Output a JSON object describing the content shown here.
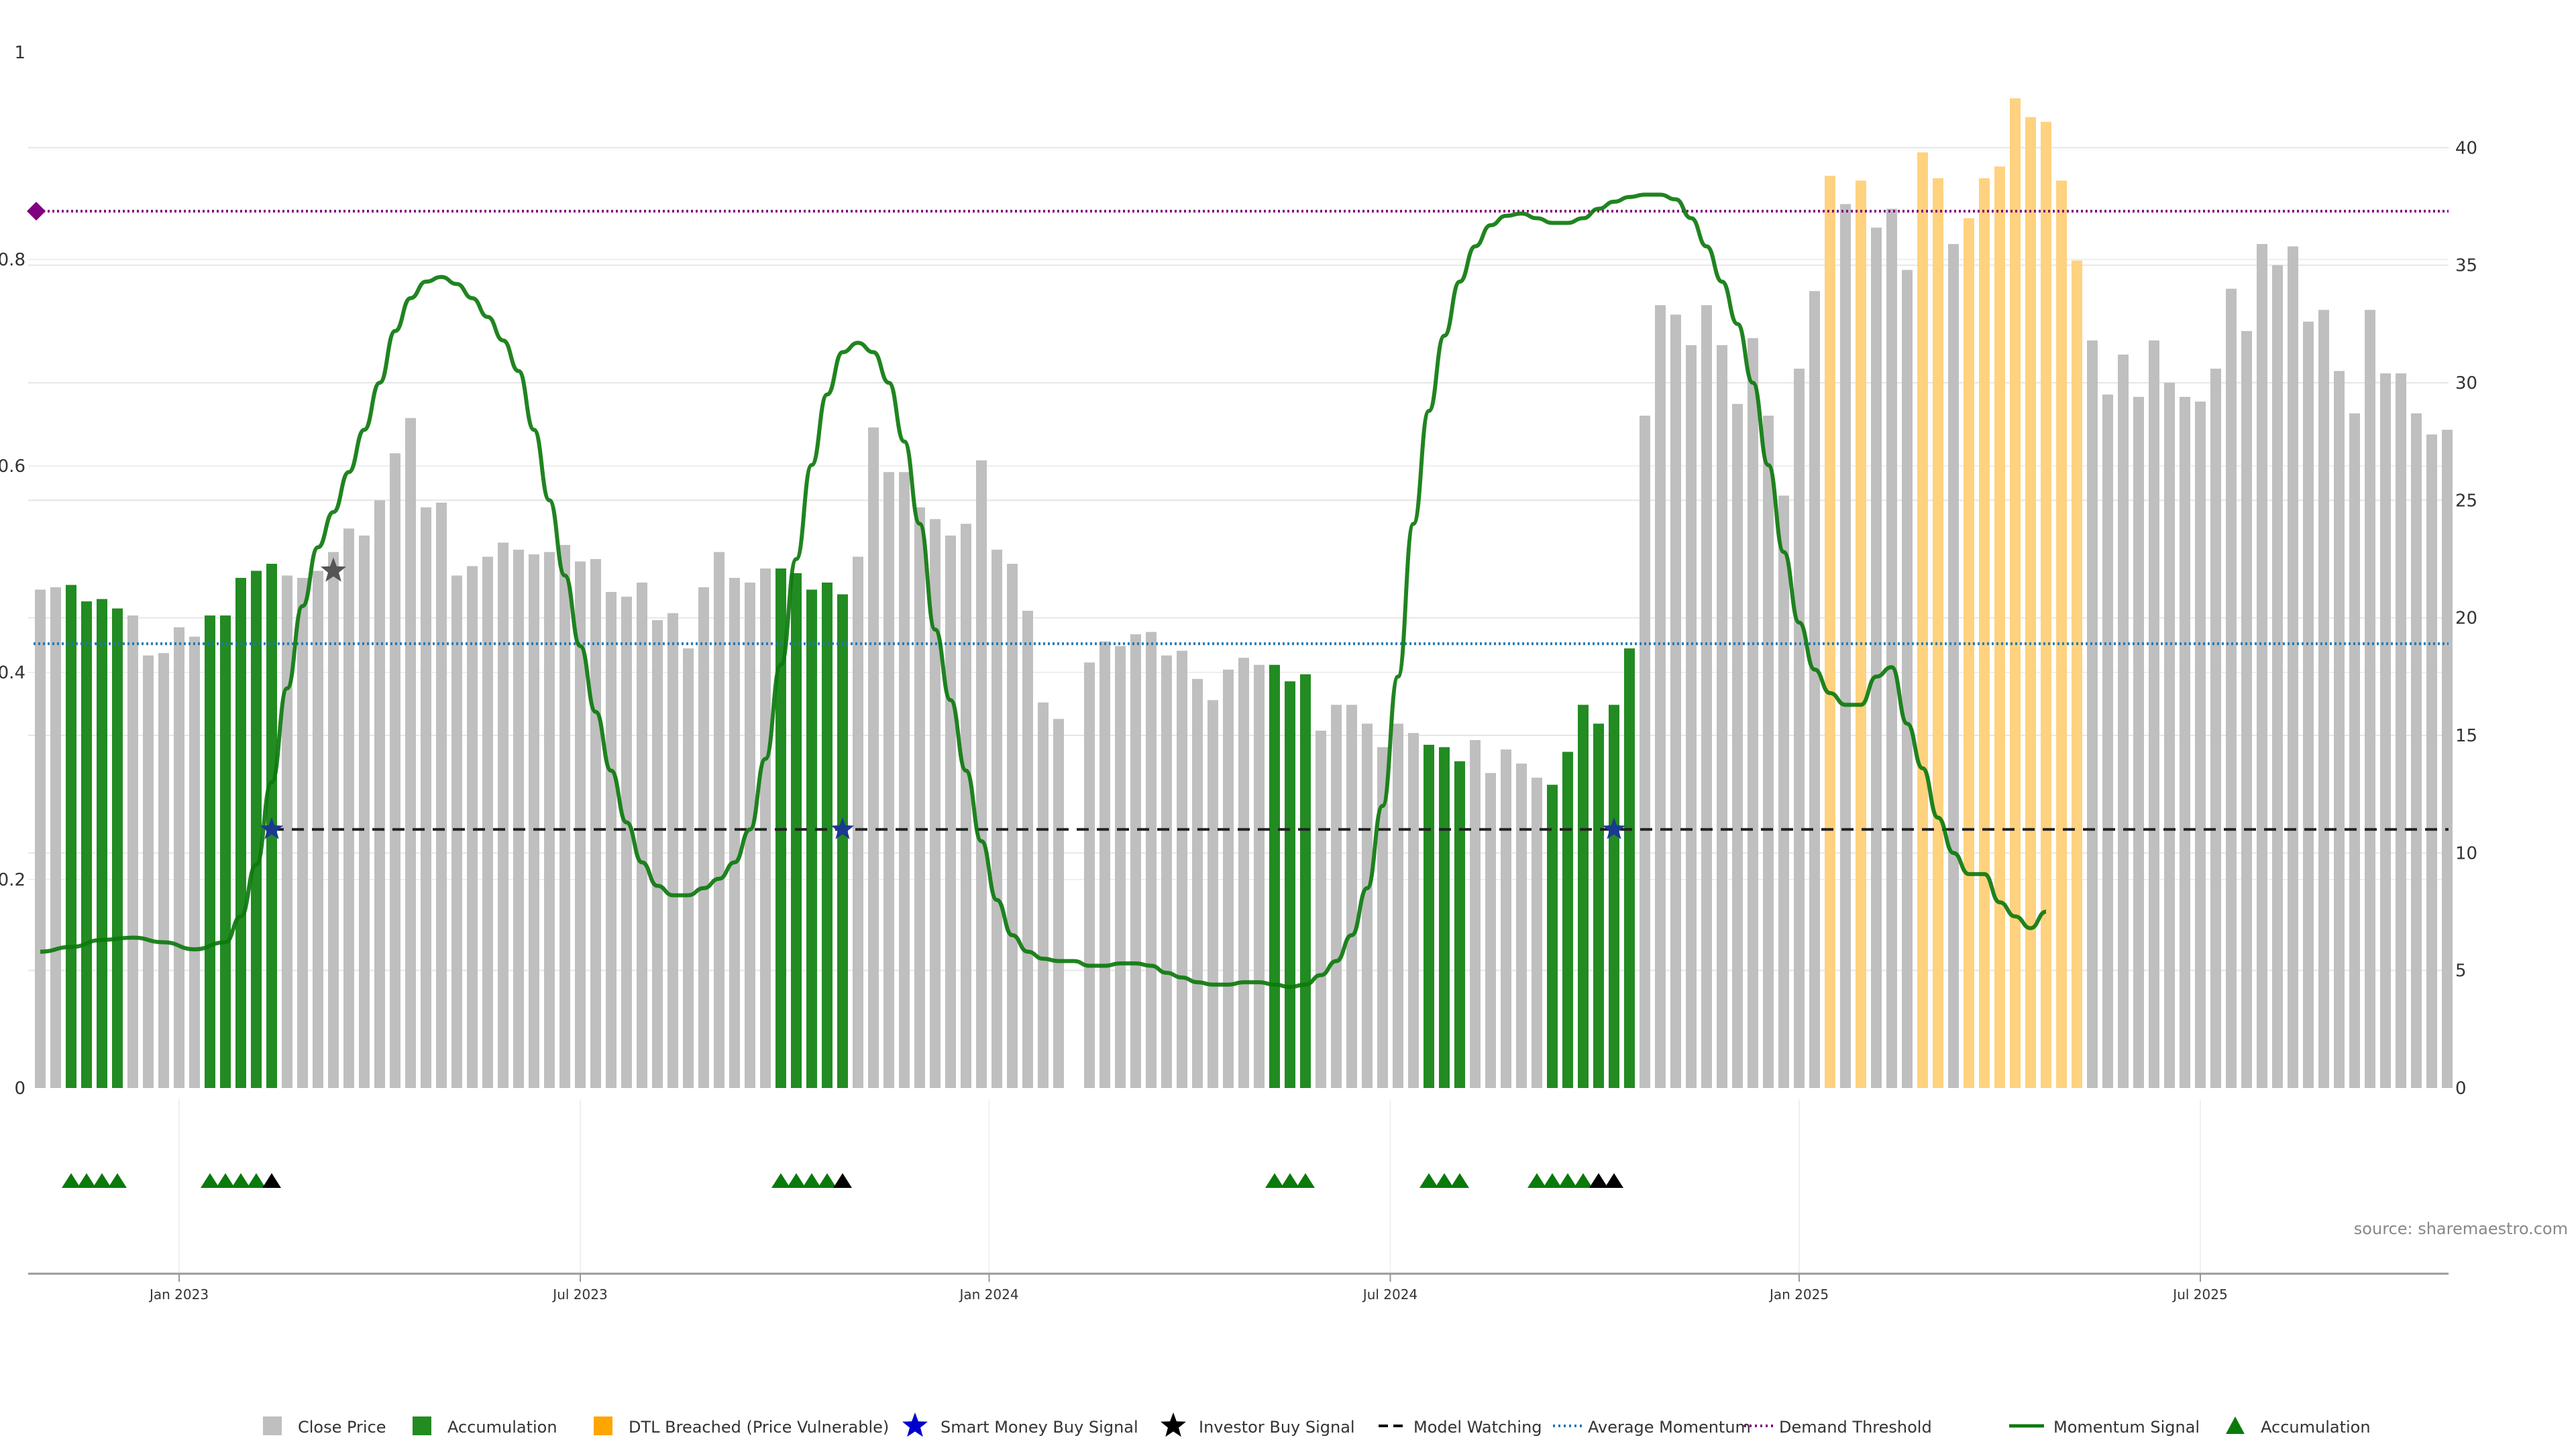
{
  "chart_data": {
    "type": "bar",
    "source": "source: sharemaestro.com",
    "left_axis": {
      "ticks": [
        0,
        0.2,
        0.4,
        0.6,
        0.8,
        1
      ],
      "tick_labels": [
        "0",
        "0.2",
        "0.4",
        "0.6",
        "0.8",
        "1"
      ],
      "ylim": [
        0,
        1
      ]
    },
    "right_axis": {
      "ticks": [
        0,
        5,
        10,
        15,
        20,
        25,
        30,
        35,
        40
      ],
      "tick_labels": [
        "0",
        "5",
        "10",
        "15",
        "20",
        "25",
        "30",
        "35",
        "40"
      ],
      "ylim": [
        0,
        44
      ]
    },
    "x_ticks": [
      {
        "index": 9,
        "label": "Jan 2023"
      },
      {
        "index": 35,
        "label": "Jul 2023"
      },
      {
        "index": 61.5,
        "label": "Jan 2024"
      },
      {
        "index": 87.5,
        "label": "Jul 2024"
      },
      {
        "index": 114,
        "label": "Jan 2025"
      },
      {
        "index": 140,
        "label": "Jul 2025"
      }
    ],
    "bar_count": 157,
    "close_price": [
      21.2,
      21.3,
      21.4,
      20.7,
      20.8,
      20.4,
      20.1,
      18.4,
      18.5,
      19.6,
      19.2,
      20.1,
      20.1,
      21.7,
      22.0,
      22.3,
      21.8,
      21.7,
      22.0,
      22.8,
      23.8,
      23.5,
      25.0,
      27.0,
      28.5,
      24.7,
      24.9,
      21.8,
      22.2,
      22.6,
      23.2,
      22.9,
      22.7,
      22.8,
      23.1,
      22.4,
      22.5,
      21.1,
      20.9,
      21.5,
      19.9,
      20.2,
      18.7,
      21.3,
      22.8,
      21.7,
      21.5,
      22.1,
      22.1,
      21.9,
      21.2,
      21.5,
      21.0,
      22.6,
      28.1,
      26.2,
      26.2,
      24.7,
      24.2,
      23.5,
      24.0,
      26.7,
      22.9,
      22.3,
      20.3,
      16.4,
      15.7,
      0,
      18.1,
      19.0,
      18.8,
      19.3,
      19.4,
      18.4,
      18.6,
      17.4,
      16.5,
      17.8,
      18.3,
      18.0,
      18.0,
      17.3,
      17.6,
      15.2,
      16.3,
      16.3,
      15.5,
      14.5,
      15.5,
      15.1,
      14.6,
      14.5,
      13.9,
      14.8,
      13.4,
      14.4,
      13.8,
      13.2,
      12.9,
      14.3,
      16.3,
      15.5,
      16.3,
      18.7,
      28.6,
      33.3,
      32.9,
      31.6,
      33.3,
      31.6,
      29.1,
      31.9,
      28.6,
      25.2,
      30.6,
      33.9,
      38.8,
      37.6,
      38.6,
      36.6,
      37.4,
      34.8,
      39.8,
      38.7,
      35.9,
      37.0,
      38.7,
      39.2,
      42.1,
      41.3,
      41.1,
      38.6,
      35.2,
      31.8,
      29.5,
      31.2,
      29.4,
      31.8,
      30.0,
      29.4,
      29.2,
      30.6,
      34.0,
      32.2,
      35.9,
      35.0,
      35.8,
      32.6,
      33.1,
      30.5,
      28.7,
      33.1,
      30.4,
      30.4,
      28.7,
      27.8,
      28.0
    ],
    "accumulation_bar_indices": [
      2,
      3,
      4,
      5,
      11,
      12,
      13,
      14,
      15,
      48,
      49,
      50,
      51,
      52,
      80,
      81,
      82,
      90,
      91,
      92,
      98,
      99,
      100,
      101,
      102,
      103
    ],
    "dtl_breached_bar_indices": [
      116,
      118,
      122,
      123,
      125,
      126,
      127,
      128,
      129,
      130,
      131,
      132
    ],
    "momentum_signal": [
      [
        0,
        5.8
      ],
      [
        2,
        6.0
      ],
      [
        4,
        6.3
      ],
      [
        6,
        6.4
      ],
      [
        8,
        6.2
      ],
      [
        10,
        5.9
      ],
      [
        12,
        6.2
      ],
      [
        13,
        7.3
      ],
      [
        14,
        9.5
      ],
      [
        15,
        13.0
      ],
      [
        16,
        17.0
      ],
      [
        17,
        20.5
      ],
      [
        18,
        23.0
      ],
      [
        19,
        24.5
      ],
      [
        20,
        26.2
      ],
      [
        21,
        28.0
      ],
      [
        22,
        30.0
      ],
      [
        23,
        32.2
      ],
      [
        24,
        33.6
      ],
      [
        25,
        34.3
      ],
      [
        26,
        34.5
      ],
      [
        27,
        34.2
      ],
      [
        28,
        33.6
      ],
      [
        29,
        32.8
      ],
      [
        30,
        31.8
      ],
      [
        31,
        30.5
      ],
      [
        32,
        28.0
      ],
      [
        33,
        25.0
      ],
      [
        34,
        21.8
      ],
      [
        35,
        18.8
      ],
      [
        36,
        16.0
      ],
      [
        37,
        13.5
      ],
      [
        38,
        11.3
      ],
      [
        39,
        9.6
      ],
      [
        40,
        8.6
      ],
      [
        41,
        8.2
      ],
      [
        42,
        8.2
      ],
      [
        43,
        8.5
      ],
      [
        44,
        8.9
      ],
      [
        45,
        9.6
      ],
      [
        46,
        11.0
      ],
      [
        47,
        14.0
      ],
      [
        48,
        18.0
      ],
      [
        49,
        22.5
      ],
      [
        50,
        26.5
      ],
      [
        51,
        29.5
      ],
      [
        52,
        31.3
      ],
      [
        53,
        31.7
      ],
      [
        54,
        31.3
      ],
      [
        55,
        30.0
      ],
      [
        56,
        27.5
      ],
      [
        57,
        24.0
      ],
      [
        58,
        19.5
      ],
      [
        59,
        16.5
      ],
      [
        60,
        13.5
      ],
      [
        61,
        10.5
      ],
      [
        62,
        8.0
      ],
      [
        63,
        6.5
      ],
      [
        64,
        5.8
      ],
      [
        65,
        5.5
      ],
      [
        66,
        5.4
      ],
      [
        67,
        5.4
      ],
      [
        68,
        5.2
      ],
      [
        69,
        5.2
      ],
      [
        70,
        5.3
      ],
      [
        71,
        5.3
      ],
      [
        72,
        5.2
      ],
      [
        73,
        4.9
      ],
      [
        74,
        4.7
      ],
      [
        75,
        4.5
      ],
      [
        76,
        4.4
      ],
      [
        77,
        4.4
      ],
      [
        78,
        4.5
      ],
      [
        79,
        4.5
      ],
      [
        80,
        4.4
      ],
      [
        81,
        4.3
      ],
      [
        82,
        4.4
      ],
      [
        83,
        4.8
      ],
      [
        84,
        5.4
      ],
      [
        85,
        6.5
      ],
      [
        86,
        8.5
      ],
      [
        87,
        12.0
      ],
      [
        88,
        17.5
      ],
      [
        89,
        24.0
      ],
      [
        90,
        28.8
      ],
      [
        91,
        32.0
      ],
      [
        92,
        34.3
      ],
      [
        93,
        35.8
      ],
      [
        94,
        36.7
      ],
      [
        95,
        37.1
      ],
      [
        96,
        37.2
      ],
      [
        97,
        37.0
      ],
      [
        98,
        36.8
      ],
      [
        99,
        36.8
      ],
      [
        100,
        37.0
      ],
      [
        101,
        37.4
      ],
      [
        102,
        37.7
      ],
      [
        103,
        37.9
      ],
      [
        104,
        38.0
      ],
      [
        105,
        38.0
      ],
      [
        106,
        37.8
      ],
      [
        107,
        37.0
      ],
      [
        108,
        35.8
      ],
      [
        109,
        34.3
      ],
      [
        110,
        32.5
      ],
      [
        111,
        30.0
      ],
      [
        112,
        26.5
      ],
      [
        113,
        22.8
      ],
      [
        114,
        19.8
      ],
      [
        115,
        17.8
      ],
      [
        116,
        16.8
      ],
      [
        117,
        16.3
      ],
      [
        118,
        16.3
      ],
      [
        119,
        17.5
      ],
      [
        120,
        17.9
      ],
      [
        121,
        15.5
      ],
      [
        122,
        13.6
      ],
      [
        123,
        11.5
      ],
      [
        124,
        10.0
      ],
      [
        125,
        9.1
      ],
      [
        126,
        9.1
      ],
      [
        127,
        7.9
      ],
      [
        128,
        7.3
      ],
      [
        129,
        6.8
      ],
      [
        130,
        7.5
      ]
    ],
    "average_momentum": 18.9,
    "demand_threshold": 37.3,
    "model_watching_level": 11.0,
    "smart_money_buy_signals": [
      {
        "index": 15,
        "y": 11.0
      },
      {
        "index": 52,
        "y": 11.0
      },
      {
        "index": 102,
        "y": 11.0
      }
    ],
    "investor_buy_signals": [
      {
        "index": 19,
        "y": 22.0
      }
    ],
    "accumulation_markers": [
      2,
      3,
      4,
      5,
      11,
      12,
      13,
      14,
      48,
      49,
      50,
      51,
      80,
      81,
      82,
      90,
      91,
      92,
      97,
      98,
      99,
      100,
      101
    ],
    "investor_markers": [
      15,
      52,
      101,
      102
    ],
    "legend": [
      {
        "label": "Close Price",
        "symbol": "square",
        "color": "#bfbfbf"
      },
      {
        "label": "Accumulation",
        "symbol": "square",
        "color": "#228b22"
      },
      {
        "label": "DTL Breached (Price Vulnerable)",
        "symbol": "square",
        "color": "#ffa500"
      },
      {
        "label": "Smart Money Buy Signal",
        "symbol": "star",
        "color": "#0000cc"
      },
      {
        "label": "Investor Buy Signal",
        "symbol": "star",
        "color": "#000000"
      },
      {
        "label": "Model Watching",
        "symbol": "dash",
        "color": "#000000"
      },
      {
        "label": "Average Momentum",
        "symbol": "dot",
        "color": "#1f77b4"
      },
      {
        "label": "Demand Threshold",
        "symbol": "dot",
        "color": "#800080"
      },
      {
        "label": "Momentum Signal",
        "symbol": "line",
        "color": "#0d7a0d"
      },
      {
        "label": "Accumulation",
        "symbol": "triangle",
        "color": "#0a7a0a"
      }
    ],
    "colors": {
      "close": "#bfbfbf",
      "accumulation": "#228b22",
      "dtl": "#ffd27f",
      "momentum": "#0d7a0d",
      "avg_momentum": "#1f77b4",
      "demand": "#800080",
      "diamond": "#800080",
      "smart_star": "#1a3a8f",
      "investor_star": "#555555",
      "marker_green": "#0a7a0a",
      "marker_black": "#000000",
      "grid": "#e6e6e6"
    }
  }
}
